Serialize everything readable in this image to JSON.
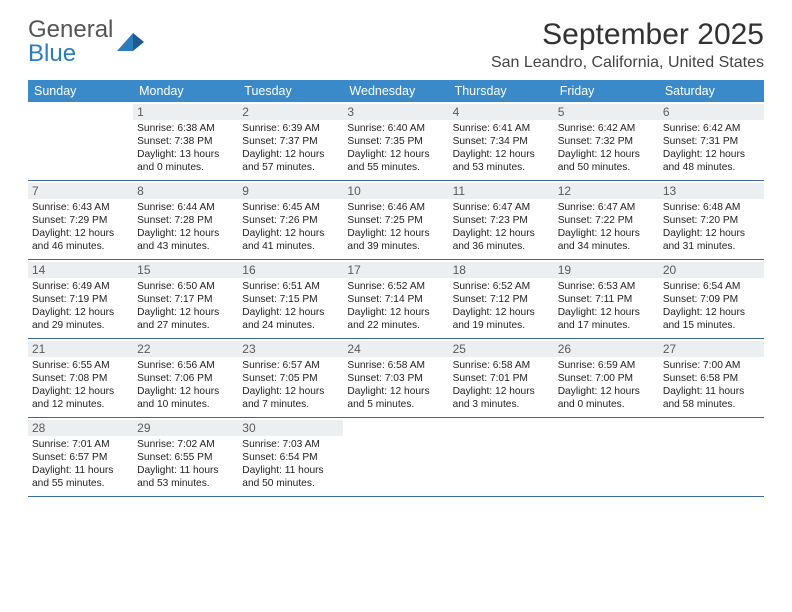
{
  "brand": {
    "line1": "General",
    "line2": "Blue"
  },
  "title": "September 2025",
  "location": "San Leandro, California, United States",
  "colors": {
    "header_bg": "#3a8ac9",
    "header_text": "#ffffff",
    "row_divider": "#3a6a9a",
    "daynum_bg": "#eceff1",
    "daynum_text": "#5a5a5a",
    "body_text": "#222222",
    "brand_gray": "#555555",
    "brand_blue": "#2b7bbf"
  },
  "weekdays": [
    "Sunday",
    "Monday",
    "Tuesday",
    "Wednesday",
    "Thursday",
    "Friday",
    "Saturday"
  ],
  "weeks": [
    [
      null,
      {
        "n": "1",
        "sr": "6:38 AM",
        "ss": "7:38 PM",
        "dl": "13 hours and 0 minutes."
      },
      {
        "n": "2",
        "sr": "6:39 AM",
        "ss": "7:37 PM",
        "dl": "12 hours and 57 minutes."
      },
      {
        "n": "3",
        "sr": "6:40 AM",
        "ss": "7:35 PM",
        "dl": "12 hours and 55 minutes."
      },
      {
        "n": "4",
        "sr": "6:41 AM",
        "ss": "7:34 PM",
        "dl": "12 hours and 53 minutes."
      },
      {
        "n": "5",
        "sr": "6:42 AM",
        "ss": "7:32 PM",
        "dl": "12 hours and 50 minutes."
      },
      {
        "n": "6",
        "sr": "6:42 AM",
        "ss": "7:31 PM",
        "dl": "12 hours and 48 minutes."
      }
    ],
    [
      {
        "n": "7",
        "sr": "6:43 AM",
        "ss": "7:29 PM",
        "dl": "12 hours and 46 minutes."
      },
      {
        "n": "8",
        "sr": "6:44 AM",
        "ss": "7:28 PM",
        "dl": "12 hours and 43 minutes."
      },
      {
        "n": "9",
        "sr": "6:45 AM",
        "ss": "7:26 PM",
        "dl": "12 hours and 41 minutes."
      },
      {
        "n": "10",
        "sr": "6:46 AM",
        "ss": "7:25 PM",
        "dl": "12 hours and 39 minutes."
      },
      {
        "n": "11",
        "sr": "6:47 AM",
        "ss": "7:23 PM",
        "dl": "12 hours and 36 minutes."
      },
      {
        "n": "12",
        "sr": "6:47 AM",
        "ss": "7:22 PM",
        "dl": "12 hours and 34 minutes."
      },
      {
        "n": "13",
        "sr": "6:48 AM",
        "ss": "7:20 PM",
        "dl": "12 hours and 31 minutes."
      }
    ],
    [
      {
        "n": "14",
        "sr": "6:49 AM",
        "ss": "7:19 PM",
        "dl": "12 hours and 29 minutes."
      },
      {
        "n": "15",
        "sr": "6:50 AM",
        "ss": "7:17 PM",
        "dl": "12 hours and 27 minutes."
      },
      {
        "n": "16",
        "sr": "6:51 AM",
        "ss": "7:15 PM",
        "dl": "12 hours and 24 minutes."
      },
      {
        "n": "17",
        "sr": "6:52 AM",
        "ss": "7:14 PM",
        "dl": "12 hours and 22 minutes."
      },
      {
        "n": "18",
        "sr": "6:52 AM",
        "ss": "7:12 PM",
        "dl": "12 hours and 19 minutes."
      },
      {
        "n": "19",
        "sr": "6:53 AM",
        "ss": "7:11 PM",
        "dl": "12 hours and 17 minutes."
      },
      {
        "n": "20",
        "sr": "6:54 AM",
        "ss": "7:09 PM",
        "dl": "12 hours and 15 minutes."
      }
    ],
    [
      {
        "n": "21",
        "sr": "6:55 AM",
        "ss": "7:08 PM",
        "dl": "12 hours and 12 minutes."
      },
      {
        "n": "22",
        "sr": "6:56 AM",
        "ss": "7:06 PM",
        "dl": "12 hours and 10 minutes."
      },
      {
        "n": "23",
        "sr": "6:57 AM",
        "ss": "7:05 PM",
        "dl": "12 hours and 7 minutes."
      },
      {
        "n": "24",
        "sr": "6:58 AM",
        "ss": "7:03 PM",
        "dl": "12 hours and 5 minutes."
      },
      {
        "n": "25",
        "sr": "6:58 AM",
        "ss": "7:01 PM",
        "dl": "12 hours and 3 minutes."
      },
      {
        "n": "26",
        "sr": "6:59 AM",
        "ss": "7:00 PM",
        "dl": "12 hours and 0 minutes."
      },
      {
        "n": "27",
        "sr": "7:00 AM",
        "ss": "6:58 PM",
        "dl": "11 hours and 58 minutes."
      }
    ],
    [
      {
        "n": "28",
        "sr": "7:01 AM",
        "ss": "6:57 PM",
        "dl": "11 hours and 55 minutes."
      },
      {
        "n": "29",
        "sr": "7:02 AM",
        "ss": "6:55 PM",
        "dl": "11 hours and 53 minutes."
      },
      {
        "n": "30",
        "sr": "7:03 AM",
        "ss": "6:54 PM",
        "dl": "11 hours and 50 minutes."
      },
      null,
      null,
      null,
      null
    ]
  ],
  "labels": {
    "sunrise": "Sunrise: ",
    "sunset": "Sunset: ",
    "daylight": "Daylight: "
  }
}
